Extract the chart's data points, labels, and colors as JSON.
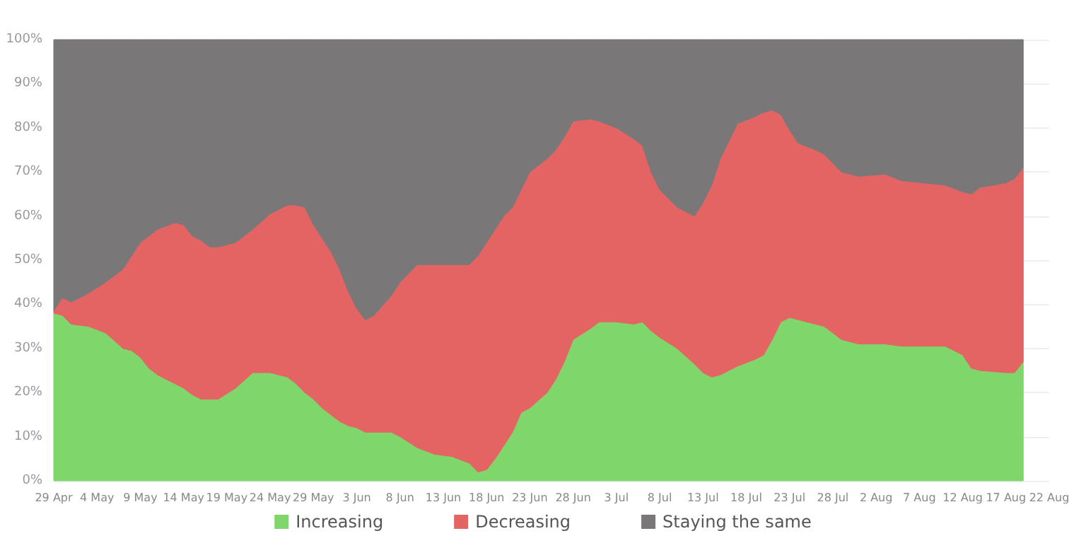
{
  "chart_data": {
    "type": "area",
    "stacked": true,
    "grid": "y",
    "legend": "bottom",
    "x": [
      "--04-29",
      "--04-30",
      "--05-01",
      "--05-03",
      "--05-05",
      "--05-07",
      "--05-08",
      "--05-09",
      "--05-10",
      "--05-11",
      "--05-13",
      "--05-14",
      "--05-15",
      "--05-16",
      "--05-17",
      "--05-18",
      "--05-20",
      "--05-22",
      "--05-24",
      "--05-26",
      "--05-27",
      "--05-28",
      "--05-29",
      "--05-30",
      "--05-31",
      "--06-01",
      "--06-02",
      "--06-03",
      "--06-04",
      "--06-05",
      "--06-07",
      "--06-08",
      "--06-10",
      "--06-12",
      "--06-14",
      "--06-16",
      "--06-17",
      "--06-18",
      "--06-19",
      "--06-20",
      "--06-21",
      "--06-22",
      "--06-23",
      "--06-25",
      "--06-26",
      "--06-27",
      "--06-28",
      "--06-30",
      "--07-01",
      "--07-03",
      "--07-05",
      "--07-06",
      "--07-07",
      "--07-08",
      "--07-10",
      "--07-12",
      "--07-13",
      "--07-14",
      "--07-15",
      "--07-17",
      "--07-19",
      "--07-20",
      "--07-21",
      "--07-22",
      "--07-23",
      "--07-24",
      "--07-26",
      "--07-27",
      "--07-29",
      "--07-31",
      "--08-03",
      "--08-05",
      "--08-10",
      "--08-12",
      "--08-13",
      "--08-14",
      "--08-17",
      "--08-18",
      "--08-19"
    ],
    "series": [
      {
        "name": "Increasing",
        "color": "#7fd66b",
        "values": [
          38,
          37.5,
          35.5,
          35,
          33.5,
          30,
          29.5,
          28,
          25.5,
          24,
          22,
          21,
          19.5,
          18.5,
          18.5,
          18.5,
          21,
          24.5,
          24.5,
          23.5,
          22,
          20,
          18.5,
          16.5,
          15,
          13.5,
          12.5,
          12,
          11,
          11,
          11,
          10,
          7.5,
          6,
          5.5,
          4,
          2,
          2.5,
          5,
          8,
          11,
          15.5,
          16.5,
          20,
          23,
          27,
          32,
          34.5,
          36,
          36,
          35.5,
          36,
          34,
          32.5,
          30,
          26.5,
          24.5,
          23.5,
          24,
          26,
          27.5,
          28.5,
          32,
          36,
          37,
          36.5,
          35.5,
          35,
          32,
          31,
          31,
          30.5,
          30.5,
          28.5,
          25.5,
          25,
          24.5,
          24.5,
          27
        ]
      },
      {
        "name": "Decreasing",
        "color": "#e46464",
        "values": [
          0.5,
          4,
          5,
          7.5,
          11.5,
          18,
          21.5,
          26,
          30,
          33,
          36.5,
          37,
          36,
          36,
          34.5,
          34.5,
          33,
          32.5,
          36,
          39,
          40.5,
          42,
          39.5,
          38.5,
          37,
          34.5,
          30.5,
          27,
          25.5,
          26.5,
          31,
          35,
          41.5,
          43,
          43.5,
          45,
          49,
          51.5,
          52,
          52,
          51,
          50.5,
          53.5,
          53,
          52,
          51,
          49.5,
          47.5,
          45.5,
          44,
          42,
          40,
          36,
          33.5,
          32,
          33.5,
          38.5,
          43.5,
          49,
          55,
          55,
          55,
          52,
          47,
          42.5,
          40,
          39.5,
          39,
          38,
          38,
          38.5,
          37.5,
          36.5,
          37,
          39.5,
          41.5,
          43,
          44,
          44
        ]
      },
      {
        "name": "Staying the same",
        "color": "#797777",
        "values": [
          61.5,
          58.5,
          59.5,
          57.5,
          55,
          52,
          49,
          46,
          44.5,
          43,
          41.5,
          42,
          44.5,
          45.5,
          47,
          47,
          46,
          43,
          39.5,
          37.5,
          37.5,
          38,
          42,
          45,
          48,
          52,
          57,
          61,
          63.5,
          62.5,
          58,
          55,
          51,
          51,
          51,
          51,
          49,
          46,
          43,
          40,
          38,
          34,
          30,
          27,
          25,
          22,
          18.5,
          18,
          18.5,
          20,
          22.5,
          24,
          30,
          34,
          38,
          40,
          37,
          33,
          27,
          19,
          17.5,
          16.5,
          16,
          17,
          20.5,
          23.5,
          25,
          26,
          30,
          31,
          30.5,
          32,
          33,
          34.5,
          35,
          33.5,
          32.5,
          31.5,
          29
        ]
      }
    ],
    "xlim": [
      "--04-29",
      "--08-22"
    ],
    "xticks": [
      {
        "value": "--04-29",
        "label": "29 Apr"
      },
      {
        "value": "--05-04",
        "label": "4 May"
      },
      {
        "value": "--05-09",
        "label": "9 May"
      },
      {
        "value": "--05-14",
        "label": "14 May"
      },
      {
        "value": "--05-19",
        "label": "19 May"
      },
      {
        "value": "--05-24",
        "label": "24 May"
      },
      {
        "value": "--05-29",
        "label": "29 May"
      },
      {
        "value": "--06-03",
        "label": "3 Jun"
      },
      {
        "value": "--06-08",
        "label": "8 Jun"
      },
      {
        "value": "--06-13",
        "label": "13 Jun"
      },
      {
        "value": "--06-18",
        "label": "18 Jun"
      },
      {
        "value": "--06-23",
        "label": "23 Jun"
      },
      {
        "value": "--06-28",
        "label": "28 Jun"
      },
      {
        "value": "--07-03",
        "label": "3 Jul"
      },
      {
        "value": "--07-08",
        "label": "8 Jul"
      },
      {
        "value": "--07-13",
        "label": "13 Jul"
      },
      {
        "value": "--07-18",
        "label": "18 Jul"
      },
      {
        "value": "--07-23",
        "label": "23 Jul"
      },
      {
        "value": "--07-28",
        "label": "28 Jul"
      },
      {
        "value": "--08-02",
        "label": "2 Aug"
      },
      {
        "value": "--08-07",
        "label": "7 Aug"
      },
      {
        "value": "--08-12",
        "label": "12 Aug"
      },
      {
        "value": "--08-17",
        "label": "17 Aug"
      },
      {
        "value": "--08-22",
        "label": "22 Aug"
      }
    ],
    "ylim": [
      0,
      100
    ],
    "yticks": [
      {
        "value": 0,
        "label": "0%"
      },
      {
        "value": 10,
        "label": "10%"
      },
      {
        "value": 20,
        "label": "20%"
      },
      {
        "value": 30,
        "label": "30%"
      },
      {
        "value": 40,
        "label": "40%"
      },
      {
        "value": 50,
        "label": "50%"
      },
      {
        "value": 60,
        "label": "60%"
      },
      {
        "value": 70,
        "label": "70%"
      },
      {
        "value": 80,
        "label": "80%"
      },
      {
        "value": 90,
        "label": "90%"
      },
      {
        "value": 100,
        "label": "100%"
      }
    ]
  }
}
